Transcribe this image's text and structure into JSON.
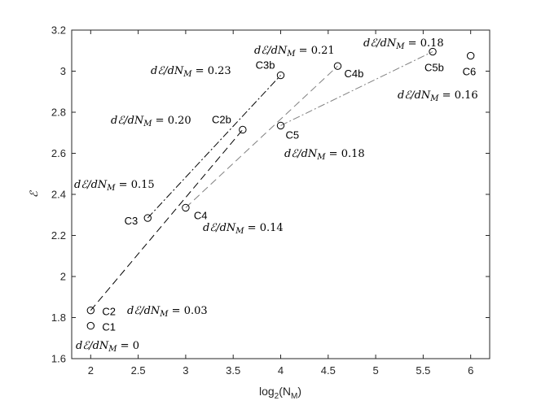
{
  "chart_data": {
    "type": "scatter",
    "xlabel": "log",
    "xlabel_sub": "2",
    "xlabel_inner": "(N",
    "xlabel_inner_sub": "M",
    "xlabel_close": ")",
    "ylabel": "ℰ",
    "xlim": [
      1.8,
      6.2
    ],
    "ylim": [
      1.6,
      3.2
    ],
    "xticks": [
      2,
      2.5,
      3,
      3.5,
      4,
      4.5,
      5,
      5.5,
      6
    ],
    "xtick_labels": [
      "2",
      "2.5",
      "3",
      "3.5",
      "4",
      "4.5",
      "5",
      "5.5",
      "6"
    ],
    "yticks": [
      1.6,
      1.8,
      2,
      2.2,
      2.4,
      2.6,
      2.8,
      3,
      3.2
    ],
    "ytick_labels": [
      "1.6",
      "1.8",
      "2",
      "2.2",
      "2.4",
      "2.6",
      "2.8",
      "3",
      "3.2"
    ],
    "grid": false,
    "points": [
      {
        "label": "C1",
        "x": 2.0,
        "y": 1.76
      },
      {
        "label": "C2",
        "x": 2.0,
        "y": 1.835
      },
      {
        "label": "C3",
        "x": 2.6,
        "y": 2.285
      },
      {
        "label": "C4",
        "x": 3.0,
        "y": 2.335
      },
      {
        "label": "C2b",
        "x": 3.6,
        "y": 2.715
      },
      {
        "label": "C5",
        "x": 4.0,
        "y": 2.735
      },
      {
        "label": "C3b",
        "x": 4.0,
        "y": 2.98
      },
      {
        "label": "C4b",
        "x": 4.6,
        "y": 3.025
      },
      {
        "label": "C5b",
        "x": 5.6,
        "y": 3.095
      },
      {
        "label": "C6",
        "x": 6.0,
        "y": 3.075
      }
    ],
    "segments": [
      {
        "from": "C2",
        "to": "C2b",
        "style": "dashed",
        "color": "#000000"
      },
      {
        "from": "C3",
        "to": "C3b",
        "style": "dashdot",
        "color": "#000000"
      },
      {
        "from": "C4",
        "to": "C4b",
        "style": "dashed",
        "color": "#808080"
      },
      {
        "from": "C5",
        "to": "C5b",
        "style": "dashdot",
        "color": "#808080"
      }
    ],
    "annotations": [
      {
        "text": "dℰ/dN",
        "sub": "M",
        "value": " = 0"
      },
      {
        "text": "dℰ/dN",
        "sub": "M",
        "value": " = 0.03"
      },
      {
        "text": "dℰ/dN",
        "sub": "M",
        "value": " = 0.15"
      },
      {
        "text": "dℰ/dN",
        "sub": "M",
        "value": " = 0.14"
      },
      {
        "text": "dℰ/dN",
        "sub": "M",
        "value": " = 0.20"
      },
      {
        "text": "dℰ/dN",
        "sub": "M",
        "value": " = 0.23"
      },
      {
        "text": "dℰ/dN",
        "sub": "M",
        "value": " = 0.21"
      },
      {
        "text": "dℰ/dN",
        "sub": "M",
        "value": " = 0.18"
      },
      {
        "text": "dℰ/dN",
        "sub": "M",
        "value": " = 0.18"
      },
      {
        "text": "dℰ/dN",
        "sub": "M",
        "value": " = 0.16"
      }
    ]
  }
}
